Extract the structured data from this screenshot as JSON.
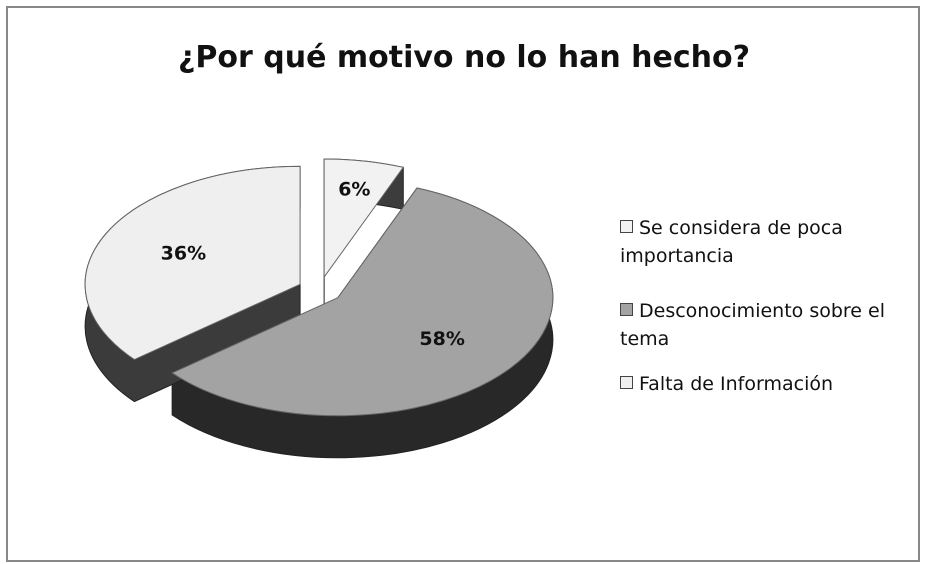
{
  "chart_data": {
    "type": "pie",
    "title": "¿Por qué motivo no lo han hecho?",
    "categories": [
      "Se considera de poca importancia",
      "Desconocimiento sobre el tema",
      "Falta de Información"
    ],
    "values": [
      6,
      58,
      36
    ],
    "value_labels": [
      "6%",
      "58%",
      "36%"
    ],
    "colors": [
      "#f2f2f2",
      "#a3a3a3",
      "#efefef"
    ],
    "legend": "right"
  }
}
